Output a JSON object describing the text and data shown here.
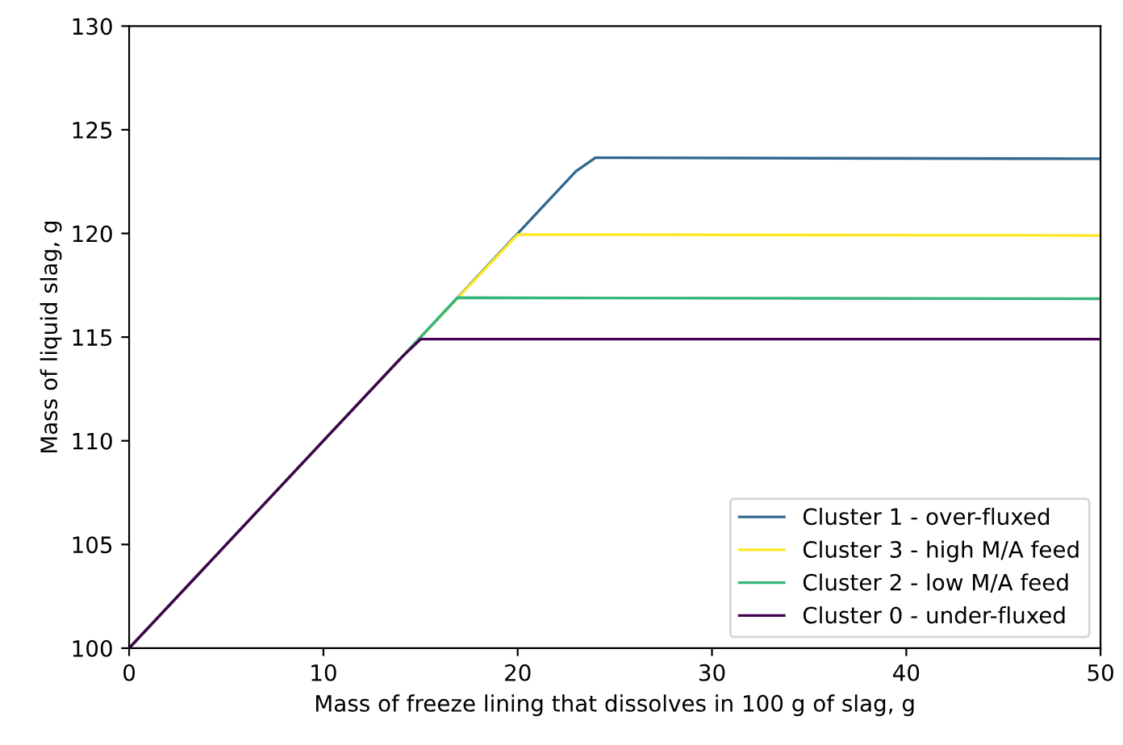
{
  "chart_data": {
    "type": "line",
    "xlabel": "Mass of freeze lining that dissolves in 100 g of slag, g",
    "ylabel": "Mass of liquid slag, g",
    "xlim": [
      0,
      50
    ],
    "ylim": [
      100,
      130
    ],
    "xticks": [
      0,
      10,
      20,
      30,
      40,
      50
    ],
    "yticks": [
      100,
      105,
      110,
      115,
      120,
      125,
      130
    ],
    "grid": false,
    "legend": "bottom right",
    "series": [
      {
        "name": "Cluster 1 - over-fluxed",
        "color": "#31688e",
        "x": [
          0,
          10,
          14,
          20,
          23,
          24,
          50
        ],
        "values": [
          100,
          110,
          114,
          120,
          123,
          123.65,
          123.6
        ]
      },
      {
        "name": "Cluster 3 - high M/A feed",
        "color": "#fde725",
        "x": [
          0,
          10,
          14,
          20,
          50
        ],
        "values": [
          100,
          110,
          114,
          119.95,
          119.9
        ]
      },
      {
        "name": "Cluster 2 - low M/A feed",
        "color": "#35b779",
        "x": [
          0,
          10,
          14,
          16.9,
          50
        ],
        "values": [
          100,
          110,
          114,
          116.9,
          116.85
        ]
      },
      {
        "name": "Cluster 0 - under-fluxed",
        "color": "#440154",
        "x": [
          0,
          10,
          14,
          15,
          50
        ],
        "values": [
          100,
          110,
          114,
          114.9,
          114.9
        ]
      }
    ]
  }
}
